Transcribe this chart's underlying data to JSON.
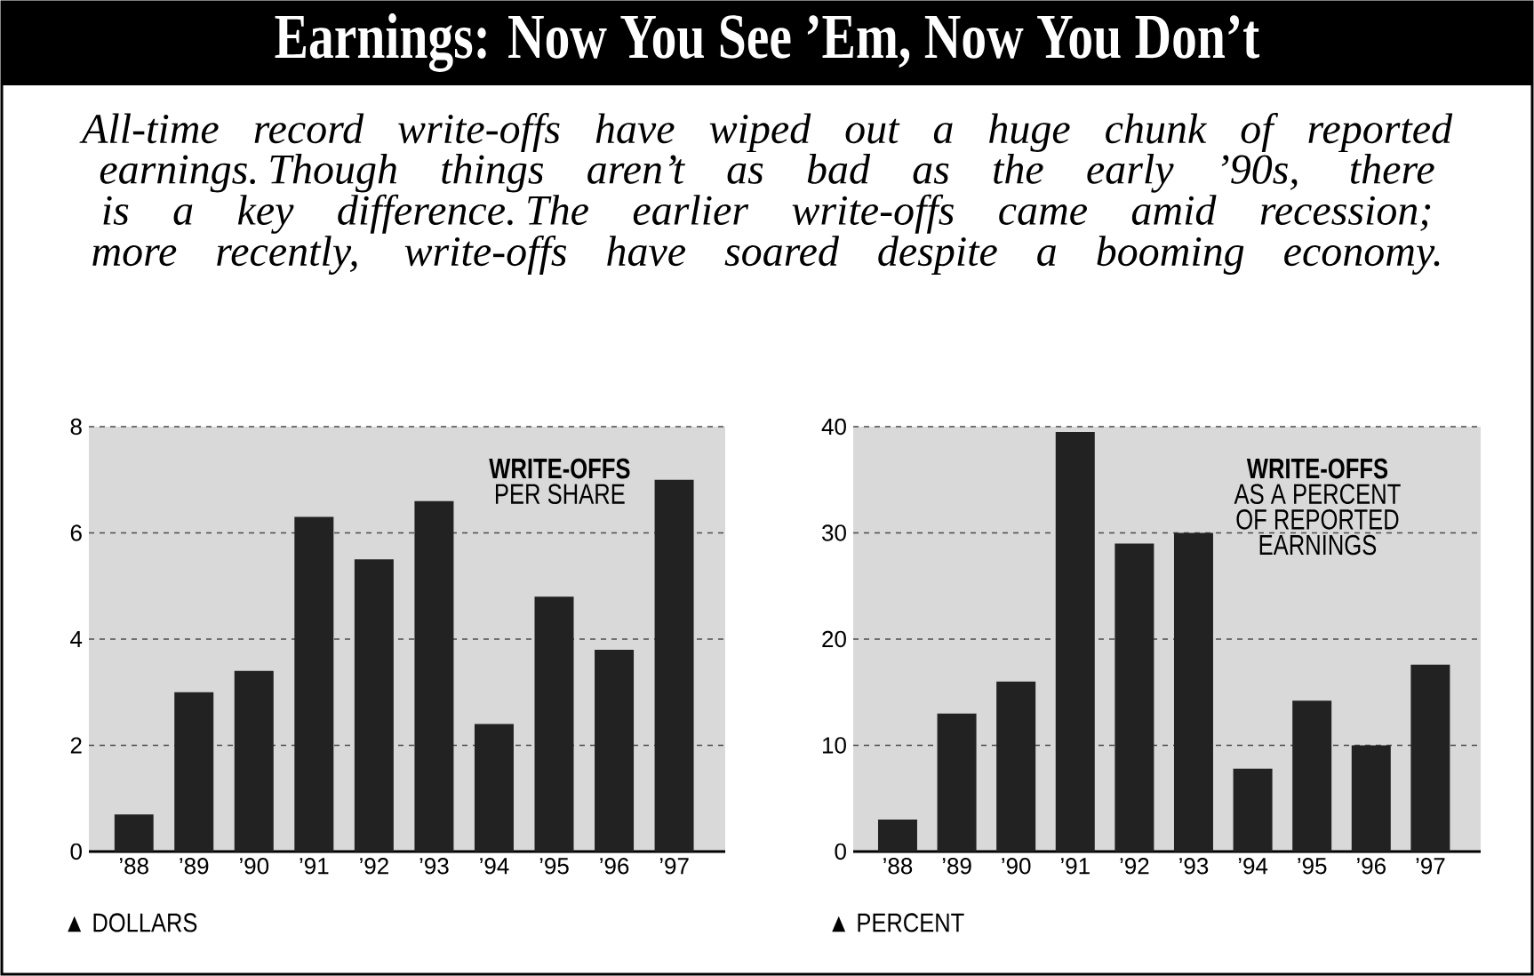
{
  "chart_data": [
    {
      "type": "bar",
      "title": "Earnings: Now You See ’Em, Now You Don’t",
      "subtitle": "All-time record write-offs have wiped out a huge chunk of reported earnings. Though things aren’t as bad as the early ’90s, there is a key difference. The earlier write-offs came amid recession; more recently, write-offs have soared despite a booming economy.",
      "categories": [
        "’88",
        "’89",
        "’90",
        "’91",
        "’92",
        "’93",
        "’94",
        "’95",
        "’96",
        "’97"
      ],
      "values": [
        0.7,
        3.0,
        3.4,
        6.3,
        5.5,
        6.6,
        2.4,
        4.8,
        3.8,
        7.0
      ],
      "color": "#222222",
      "ylim": [
        0,
        8
      ],
      "yticks": [
        0,
        2,
        4,
        6,
        8
      ],
      "grid": "y",
      "annotations": [
        "WRITE-OFFS",
        "PER SHARE",
        "▲ DOLLARS"
      ]
    },
    {
      "type": "bar",
      "categories": [
        "’88",
        "’89",
        "’90",
        "’91",
        "’92",
        "’93",
        "’94",
        "’95",
        "’96",
        "’97"
      ],
      "values": [
        3,
        13,
        16,
        39.5,
        29,
        30,
        7.8,
        14.2,
        10,
        17.6
      ],
      "color": "#222222",
      "ylim": [
        0,
        40
      ],
      "yticks": [
        0,
        10,
        20,
        30,
        40
      ],
      "grid": "y",
      "annotations": [
        "WRITE-OFFS",
        "AS A PERCENT",
        "OF REPORTED",
        "EARNINGS",
        "▲ PERCENT"
      ]
    }
  ]
}
